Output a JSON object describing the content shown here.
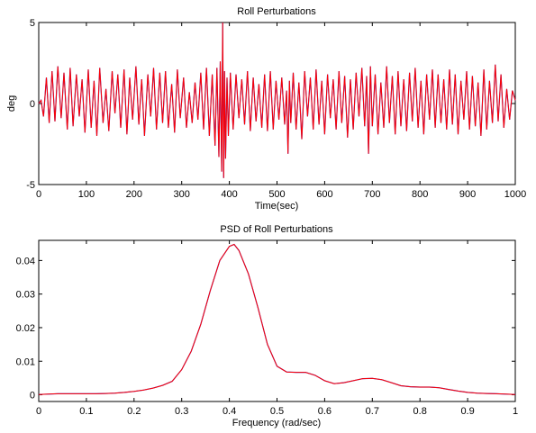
{
  "chart_data": [
    {
      "type": "line",
      "title": "Roll Perturbations",
      "xlabel": "Time(sec)",
      "ylabel": "deg",
      "xlim": [
        0,
        1000
      ],
      "ylim": [
        -5,
        5
      ],
      "xticks": [
        0,
        100,
        200,
        300,
        400,
        500,
        600,
        700,
        800,
        900,
        1000
      ],
      "yticks": [
        -5,
        0,
        5
      ],
      "grid": false,
      "series": [
        {
          "color": "#ff0000",
          "overlay_color": "#3b3bd8",
          "x": [
            0,
            5,
            10,
            16,
            22,
            28,
            34,
            40,
            47,
            53,
            60,
            66,
            72,
            79,
            85,
            91,
            97,
            104,
            110,
            116,
            122,
            128,
            135,
            141,
            147,
            154,
            160,
            166,
            172,
            179,
            185,
            191,
            197,
            204,
            210,
            216,
            222,
            229,
            235,
            241,
            247,
            254,
            260,
            266,
            272,
            279,
            285,
            291,
            297,
            304,
            310,
            316,
            322,
            328,
            334,
            340,
            346,
            352,
            358,
            364,
            370,
            374,
            378,
            381,
            384,
            386,
            388,
            390,
            392,
            395,
            398,
            402,
            408,
            414,
            420,
            426,
            432,
            438,
            444,
            450,
            456,
            462,
            468,
            474,
            480,
            486,
            492,
            498,
            504,
            510,
            516,
            520,
            523,
            526,
            529,
            534,
            540,
            546,
            552,
            558,
            564,
            570,
            576,
            582,
            588,
            594,
            600,
            606,
            612,
            618,
            624,
            630,
            636,
            642,
            648,
            654,
            660,
            666,
            672,
            678,
            684,
            688,
            692,
            696,
            700,
            706,
            712,
            718,
            724,
            730,
            736,
            742,
            748,
            754,
            760,
            766,
            772,
            778,
            784,
            790,
            796,
            802,
            808,
            814,
            820,
            826,
            832,
            838,
            844,
            850,
            856,
            862,
            868,
            874,
            880,
            886,
            892,
            898,
            904,
            910,
            916,
            922,
            928,
            934,
            940,
            946,
            952,
            958,
            964,
            970,
            976,
            982,
            988,
            994,
            1000
          ],
          "y": [
            0,
            0.2,
            -0.8,
            1.6,
            -1.2,
            2.0,
            -1.1,
            2.3,
            -0.9,
            1.9,
            -1.6,
            2.2,
            -1.4,
            1.8,
            -0.8,
            1.5,
            -1.8,
            2.1,
            -1.5,
            1.4,
            -2.0,
            2.2,
            -1.2,
            0.9,
            -1.7,
            2.0,
            -0.6,
            1.8,
            -1.5,
            2.1,
            -1.9,
            1.6,
            -1.0,
            2.3,
            -1.3,
            1.5,
            -2.0,
            1.8,
            -0.8,
            2.2,
            -1.6,
            1.9,
            -1.2,
            2.0,
            -1.5,
            1.2,
            -1.8,
            2.1,
            -0.9,
            1.6,
            -1.5,
            0.7,
            -1.2,
            1.3,
            -1.0,
            1.9,
            -1.6,
            2.2,
            -2.0,
            1.8,
            -2.6,
            2.2,
            -3.3,
            2.6,
            -4.2,
            5.0,
            -4.6,
            2.0,
            -3.4,
            1.6,
            -2.0,
            1.9,
            -1.6,
            1.8,
            -0.9,
            1.5,
            -1.3,
            2.0,
            -1.7,
            1.6,
            -1.1,
            1.2,
            -1.5,
            1.8,
            -1.7,
            2.0,
            -1.6,
            1.4,
            -1.0,
            1.6,
            -1.3,
            0.8,
            -3.1,
            1.4,
            -1.2,
            1.9,
            -1.6,
            1.3,
            -2.2,
            2.0,
            -0.8,
            1.6,
            -1.6,
            2.1,
            -1.3,
            1.4,
            -1.9,
            1.8,
            -0.9,
            1.5,
            -1.6,
            2.0,
            -1.2,
            1.7,
            -2.1,
            1.5,
            -1.6,
            1.9,
            -0.8,
            2.2,
            -1.4,
            1.7,
            -3.1,
            2.3,
            -1.4,
            1.8,
            -1.9,
            1.3,
            -1.5,
            2.3,
            -1.2,
            1.7,
            -1.9,
            2.0,
            -1.4,
            1.5,
            -1.7,
            1.9,
            -1.1,
            2.2,
            -1.5,
            1.4,
            -1.9,
            1.8,
            -1.0,
            2.1,
            -1.5,
            1.8,
            -1.2,
            1.5,
            -1.6,
            2.1,
            -1.3,
            1.8,
            -1.9,
            1.4,
            -1.0,
            2.0,
            -1.6,
            1.7,
            -1.4,
            1.3,
            -2.0,
            2.1,
            -1.6,
            1.4,
            -1.2,
            2.4,
            -1.1,
            1.8,
            -1.5,
            0.9,
            -1.0,
            0.8,
            0.2
          ]
        }
      ]
    },
    {
      "type": "line",
      "title": "PSD of Roll Perturbations",
      "xlabel": "Frequency (rad/sec)",
      "ylabel": "",
      "xlim": [
        0,
        1
      ],
      "ylim": [
        -0.002,
        0.046
      ],
      "xticks": [
        0,
        0.1,
        0.2,
        0.3,
        0.4,
        0.5,
        0.6,
        0.7,
        0.8,
        0.9,
        1
      ],
      "yticks": [
        0,
        0.01,
        0.02,
        0.03,
        0.04
      ],
      "grid": false,
      "series": [
        {
          "color": "#ff0000",
          "overlay_color": "#3b3bd8",
          "x": [
            0,
            0.02,
            0.04,
            0.06,
            0.08,
            0.1,
            0.12,
            0.14,
            0.16,
            0.18,
            0.2,
            0.22,
            0.24,
            0.26,
            0.28,
            0.3,
            0.32,
            0.34,
            0.36,
            0.38,
            0.4,
            0.41,
            0.42,
            0.44,
            0.46,
            0.48,
            0.5,
            0.52,
            0.54,
            0.56,
            0.58,
            0.6,
            0.62,
            0.64,
            0.66,
            0.68,
            0.7,
            0.72,
            0.74,
            0.76,
            0.78,
            0.8,
            0.82,
            0.84,
            0.86,
            0.88,
            0.9,
            0.92,
            0.94,
            0.96,
            0.98,
            1
          ],
          "y": [
            0.0001,
            0.0002,
            0.0003,
            0.0003,
            0.0003,
            0.0003,
            0.0003,
            0.0004,
            0.0005,
            0.0007,
            0.001,
            0.0014,
            0.002,
            0.0028,
            0.004,
            0.0075,
            0.013,
            0.021,
            0.031,
            0.04,
            0.0442,
            0.0448,
            0.043,
            0.036,
            0.026,
            0.015,
            0.0085,
            0.0068,
            0.0067,
            0.0067,
            0.0058,
            0.0042,
            0.0033,
            0.0036,
            0.0042,
            0.0048,
            0.0049,
            0.0045,
            0.0036,
            0.0027,
            0.0024,
            0.0023,
            0.0023,
            0.0021,
            0.0016,
            0.0011,
            0.0007,
            0.0005,
            0.0004,
            0.0003,
            0.0002,
            0.0001
          ]
        }
      ]
    }
  ]
}
